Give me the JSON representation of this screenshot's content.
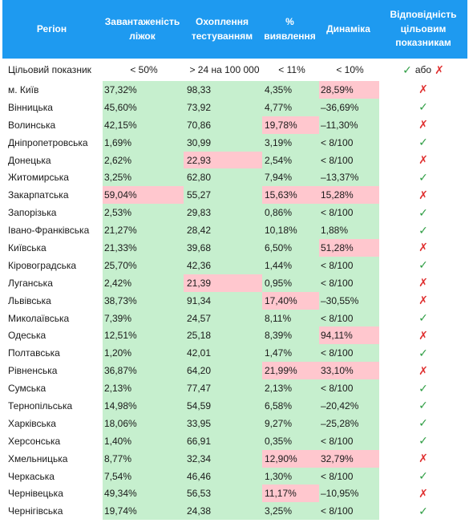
{
  "header": {
    "region": "Регіон",
    "beds": "Завантаженість ліжок",
    "testing": "Охоплення тестуванням",
    "detection": "% виявлення",
    "dynamics": "Динаміка",
    "compliance": "Відповідність цільовим показникам"
  },
  "target": {
    "label": "Цільовий показник",
    "beds": "< 50%",
    "testing": "> 24 на 100 000",
    "detection": "< 11%",
    "dynamics": "< 10%",
    "ok_mark": "✓",
    "or_text": "або",
    "no_mark": "✗"
  },
  "colors": {
    "header_bg": "#1e9af0",
    "good": "#c6efce",
    "bad": "#ffc7ce",
    "ok_mark": "#2f9e44",
    "no_mark": "#e03131"
  },
  "rows": [
    {
      "region": "м. Київ",
      "beds": "37,32%",
      "beds_ok": true,
      "testing": "98,33",
      "testing_ok": true,
      "detection": "4,35%",
      "detection_ok": true,
      "dynamics": "28,59%",
      "dynamics_ok": false,
      "compliant": false
    },
    {
      "region": "Вінницька",
      "beds": "45,60%",
      "beds_ok": true,
      "testing": "73,92",
      "testing_ok": true,
      "detection": "4,77%",
      "detection_ok": true,
      "dynamics": "–36,69%",
      "dynamics_ok": true,
      "compliant": true
    },
    {
      "region": "Волинська",
      "beds": "42,15%",
      "beds_ok": true,
      "testing": "70,86",
      "testing_ok": true,
      "detection": "19,78%",
      "detection_ok": false,
      "dynamics": "–11,30%",
      "dynamics_ok": true,
      "compliant": false
    },
    {
      "region": "Дніпропетровська",
      "beds": "1,69%",
      "beds_ok": true,
      "testing": "30,99",
      "testing_ok": true,
      "detection": "3,19%",
      "detection_ok": true,
      "dynamics": "< 8/100",
      "dynamics_ok": true,
      "compliant": true
    },
    {
      "region": "Донецька",
      "beds": "2,62%",
      "beds_ok": true,
      "testing": "22,93",
      "testing_ok": false,
      "detection": "2,54%",
      "detection_ok": true,
      "dynamics": "< 8/100",
      "dynamics_ok": true,
      "compliant": false
    },
    {
      "region": "Житомирська",
      "beds": "3,25%",
      "beds_ok": true,
      "testing": "62,80",
      "testing_ok": true,
      "detection": "7,94%",
      "detection_ok": true,
      "dynamics": "–13,37%",
      "dynamics_ok": true,
      "compliant": true
    },
    {
      "region": "Закарпатська",
      "beds": "59,04%",
      "beds_ok": false,
      "testing": "55,27",
      "testing_ok": true,
      "detection": "15,63%",
      "detection_ok": false,
      "dynamics": "15,28%",
      "dynamics_ok": false,
      "compliant": false
    },
    {
      "region": "Запорізька",
      "beds": "2,53%",
      "beds_ok": true,
      "testing": "29,83",
      "testing_ok": true,
      "detection": "0,86%",
      "detection_ok": true,
      "dynamics": "< 8/100",
      "dynamics_ok": true,
      "compliant": true
    },
    {
      "region": "Івано-Франківська",
      "beds": "21,27%",
      "beds_ok": true,
      "testing": "28,42",
      "testing_ok": true,
      "detection": "10,18%",
      "detection_ok": true,
      "dynamics": "1,88%",
      "dynamics_ok": true,
      "compliant": true
    },
    {
      "region": "Київська",
      "beds": "21,33%",
      "beds_ok": true,
      "testing": "39,68",
      "testing_ok": true,
      "detection": "6,50%",
      "detection_ok": true,
      "dynamics": "51,28%",
      "dynamics_ok": false,
      "compliant": false
    },
    {
      "region": "Кіровоградська",
      "beds": "25,70%",
      "beds_ok": true,
      "testing": "42,36",
      "testing_ok": true,
      "detection": "1,44%",
      "detection_ok": true,
      "dynamics": "< 8/100",
      "dynamics_ok": true,
      "compliant": true
    },
    {
      "region": "Луганська",
      "beds": "2,42%",
      "beds_ok": true,
      "testing": "21,39",
      "testing_ok": false,
      "detection": "0,95%",
      "detection_ok": true,
      "dynamics": "< 8/100",
      "dynamics_ok": true,
      "compliant": false
    },
    {
      "region": "Львівська",
      "beds": "38,73%",
      "beds_ok": true,
      "testing": "91,34",
      "testing_ok": true,
      "detection": "17,40%",
      "detection_ok": false,
      "dynamics": "–30,55%",
      "dynamics_ok": true,
      "compliant": false
    },
    {
      "region": "Миколаївська",
      "beds": "7,39%",
      "beds_ok": true,
      "testing": "24,57",
      "testing_ok": true,
      "detection": "8,11%",
      "detection_ok": true,
      "dynamics": "< 8/100",
      "dynamics_ok": true,
      "compliant": true
    },
    {
      "region": "Одеська",
      "beds": "12,51%",
      "beds_ok": true,
      "testing": "25,18",
      "testing_ok": true,
      "detection": "8,39%",
      "detection_ok": true,
      "dynamics": "94,11%",
      "dynamics_ok": false,
      "compliant": false
    },
    {
      "region": "Полтавська",
      "beds": "1,20%",
      "beds_ok": true,
      "testing": "42,01",
      "testing_ok": true,
      "detection": "1,47%",
      "detection_ok": true,
      "dynamics": "< 8/100",
      "dynamics_ok": true,
      "compliant": true
    },
    {
      "region": "Рівненська",
      "beds": "36,87%",
      "beds_ok": true,
      "testing": "64,20",
      "testing_ok": true,
      "detection": "21,99%",
      "detection_ok": false,
      "dynamics": "33,10%",
      "dynamics_ok": false,
      "compliant": false
    },
    {
      "region": "Сумська",
      "beds": "2,13%",
      "beds_ok": true,
      "testing": "77,47",
      "testing_ok": true,
      "detection": "2,13%",
      "detection_ok": true,
      "dynamics": "< 8/100",
      "dynamics_ok": true,
      "compliant": true
    },
    {
      "region": "Тернопільська",
      "beds": "14,98%",
      "beds_ok": true,
      "testing": "54,59",
      "testing_ok": true,
      "detection": "6,58%",
      "detection_ok": true,
      "dynamics": "–20,42%",
      "dynamics_ok": true,
      "compliant": true
    },
    {
      "region": "Харківська",
      "beds": "18,06%",
      "beds_ok": true,
      "testing": "33,95",
      "testing_ok": true,
      "detection": "9,27%",
      "detection_ok": true,
      "dynamics": "–25,28%",
      "dynamics_ok": true,
      "compliant": true
    },
    {
      "region": "Херсонська",
      "beds": "1,40%",
      "beds_ok": true,
      "testing": "66,91",
      "testing_ok": true,
      "detection": "0,35%",
      "detection_ok": true,
      "dynamics": "< 8/100",
      "dynamics_ok": true,
      "compliant": true
    },
    {
      "region": "Хмельницька",
      "beds": "8,77%",
      "beds_ok": true,
      "testing": "32,34",
      "testing_ok": true,
      "detection": "12,90%",
      "detection_ok": false,
      "dynamics": "32,79%",
      "dynamics_ok": false,
      "compliant": false
    },
    {
      "region": "Черкаська",
      "beds": "7,54%",
      "beds_ok": true,
      "testing": "46,46",
      "testing_ok": true,
      "detection": "1,30%",
      "detection_ok": true,
      "dynamics": "< 8/100",
      "dynamics_ok": true,
      "compliant": true
    },
    {
      "region": "Чернівецька",
      "beds": "49,34%",
      "beds_ok": true,
      "testing": "56,53",
      "testing_ok": true,
      "detection": "11,17%",
      "detection_ok": false,
      "dynamics": "–10,95%",
      "dynamics_ok": true,
      "compliant": false
    },
    {
      "region": "Чернігівська",
      "beds": "19,74%",
      "beds_ok": true,
      "testing": "24,38",
      "testing_ok": true,
      "detection": "3,25%",
      "detection_ok": true,
      "dynamics": "< 8/100",
      "dynamics_ok": true,
      "compliant": true
    }
  ]
}
